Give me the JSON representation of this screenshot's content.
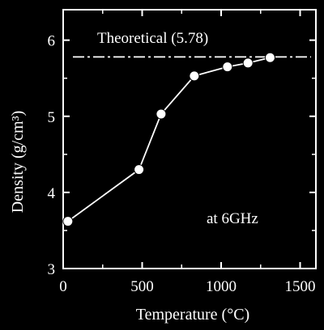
{
  "chart_data": {
    "type": "line",
    "x": [
      30,
      480,
      620,
      830,
      1040,
      1170,
      1310
    ],
    "y": [
      3.62,
      4.3,
      5.03,
      5.53,
      5.65,
      5.7,
      5.77
    ],
    "xlabel": "Temperature (°C)",
    "ylabel": "Density (g/cm³)",
    "xlim": [
      0,
      1600
    ],
    "ylim": [
      3,
      6.4
    ],
    "xticks": [
      0,
      500,
      1000,
      1500
    ],
    "yticks": [
      3,
      4,
      5,
      6
    ],
    "xtick_labels": [
      "0",
      "500",
      "1000",
      "1500"
    ],
    "ytick_labels": [
      "3",
      "4",
      "5",
      "6"
    ],
    "reference_line": {
      "label": "Theoretical (5.78)",
      "value": 5.78
    },
    "annotation": "at 6GHz",
    "grid": false,
    "colors": {
      "background": "#000000",
      "foreground": "#ffffff"
    }
  }
}
